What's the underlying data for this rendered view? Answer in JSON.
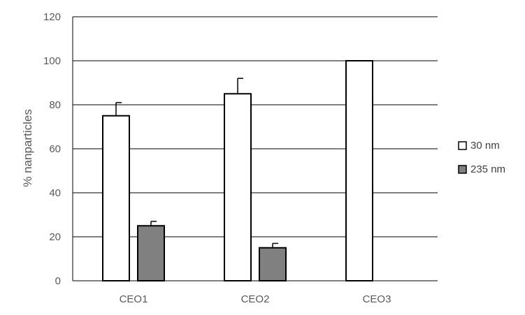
{
  "chart_data": {
    "type": "bar",
    "categories": [
      "CEO1",
      "CEO2",
      "CEO3"
    ],
    "series": [
      {
        "name": "30 nm",
        "values": [
          75,
          85,
          100
        ],
        "errors": [
          6,
          7,
          null
        ],
        "color": "#ffffff"
      },
      {
        "name": "235 nm",
        "values": [
          25,
          15,
          null
        ],
        "errors": [
          2,
          2,
          null
        ],
        "color": "#808080"
      }
    ],
    "ylabel": "% nanparticles",
    "ylim": [
      0,
      120
    ],
    "yticks": [
      "0",
      "20",
      "40",
      "60",
      "80",
      "100",
      "120"
    ],
    "grid": true,
    "legend_position": "right"
  }
}
